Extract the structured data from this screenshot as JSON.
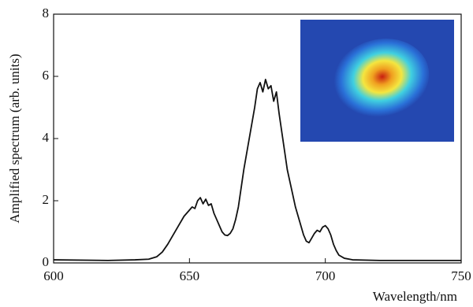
{
  "chart_data": {
    "type": "line",
    "xlabel": "Wavelength/nm",
    "ylabel": "Amplified spectrum (arb. units)",
    "xlim": [
      600,
      750
    ],
    "xticks": [
      600,
      650,
      700,
      750
    ],
    "ylim": [
      0,
      8
    ],
    "yticks": [
      0,
      2,
      4,
      6,
      8
    ],
    "grid": false,
    "series": [
      {
        "color": "#111111",
        "x": [
          600,
          620,
          630,
          635,
          638,
          640,
          642,
          644,
          646,
          648,
          650,
          651,
          652,
          653,
          654,
          655,
          656,
          657,
          658,
          659,
          660,
          661,
          662,
          663,
          664,
          665,
          666,
          667,
          668,
          669,
          670,
          671,
          672,
          673,
          674,
          675,
          676,
          677,
          678,
          679,
          680,
          681,
          682,
          683,
          684,
          685,
          686,
          687,
          688,
          689,
          690,
          691,
          692,
          693,
          694,
          695,
          696,
          697,
          698,
          699,
          700,
          701,
          702,
          703,
          704,
          705,
          707,
          710,
          720,
          735,
          750
        ],
        "values": [
          0.1,
          0.08,
          0.1,
          0.12,
          0.2,
          0.35,
          0.6,
          0.9,
          1.2,
          1.5,
          1.7,
          1.8,
          1.75,
          2.0,
          2.1,
          1.9,
          2.05,
          1.85,
          1.9,
          1.6,
          1.4,
          1.2,
          1.0,
          0.9,
          0.88,
          0.95,
          1.1,
          1.4,
          1.8,
          2.4,
          3.0,
          3.5,
          4.0,
          4.5,
          5.0,
          5.6,
          5.8,
          5.5,
          5.9,
          5.6,
          5.7,
          5.2,
          5.5,
          4.8,
          4.2,
          3.6,
          3.0,
          2.6,
          2.2,
          1.8,
          1.5,
          1.2,
          0.9,
          0.7,
          0.65,
          0.8,
          0.95,
          1.05,
          1.0,
          1.15,
          1.2,
          1.1,
          0.9,
          0.6,
          0.4,
          0.25,
          0.15,
          0.1,
          0.08,
          0.08,
          0.08
        ]
      }
    ]
  }
}
